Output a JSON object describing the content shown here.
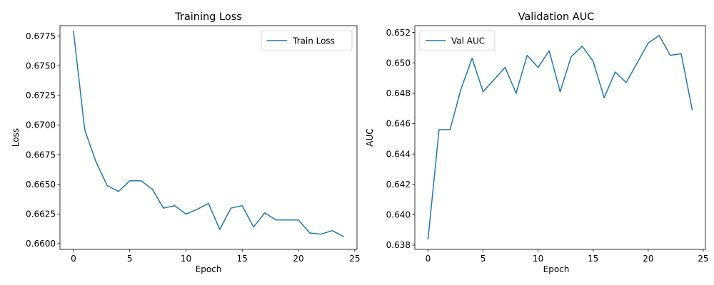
{
  "chart_data": [
    {
      "type": "line",
      "title": "Training Loss",
      "xlabel": "Epoch",
      "ylabel": "Loss",
      "xlim": [
        -1.2,
        25.2
      ],
      "ylim": [
        0.65952,
        0.67838
      ],
      "xticks": [
        0,
        5,
        10,
        15,
        20,
        25
      ],
      "xtick_labels": [
        "0",
        "5",
        "10",
        "15",
        "20",
        "25"
      ],
      "yticks": [
        0.66,
        0.6625,
        0.665,
        0.6675,
        0.67,
        0.6725,
        0.675,
        0.6775
      ],
      "ytick_labels": [
        "0.6600",
        "0.6625",
        "0.6650",
        "0.6675",
        "0.6700",
        "0.6725",
        "0.6750",
        "0.6775"
      ],
      "grid": false,
      "legend_position": "top-right",
      "color": "#1f77b4",
      "series": [
        {
          "name": "Train Loss",
          "x": [
            0,
            1,
            2,
            3,
            4,
            5,
            6,
            7,
            8,
            9,
            10,
            11,
            12,
            13,
            14,
            15,
            16,
            17,
            18,
            19,
            20,
            21,
            22,
            23,
            24
          ],
          "values": [
            0.6779,
            0.6696,
            0.6669,
            0.6649,
            0.6644,
            0.6653,
            0.6653,
            0.6646,
            0.663,
            0.6632,
            0.6625,
            0.6629,
            0.6634,
            0.6612,
            0.663,
            0.6632,
            0.6614,
            0.6626,
            0.662,
            0.662,
            0.662,
            0.6609,
            0.6608,
            0.6611,
            0.6606
          ]
        }
      ]
    },
    {
      "type": "line",
      "title": "Validation AUC",
      "xlabel": "Epoch",
      "ylabel": "AUC",
      "xlim": [
        -1.2,
        25.2
      ],
      "ylim": [
        0.63772,
        0.65245
      ],
      "xticks": [
        0,
        5,
        10,
        15,
        20,
        25
      ],
      "xtick_labels": [
        "0",
        "5",
        "10",
        "15",
        "20",
        "25"
      ],
      "yticks": [
        0.638,
        0.64,
        0.642,
        0.644,
        0.646,
        0.648,
        0.65,
        0.652
      ],
      "ytick_labels": [
        "0.638",
        "0.640",
        "0.642",
        "0.644",
        "0.646",
        "0.648",
        "0.650",
        "0.652"
      ],
      "grid": false,
      "legend_position": "top-left",
      "color": "#1f77b4",
      "series": [
        {
          "name": "Val AUC",
          "x": [
            0,
            1,
            2,
            3,
            4,
            5,
            6,
            7,
            8,
            9,
            10,
            11,
            12,
            13,
            14,
            15,
            16,
            17,
            18,
            19,
            20,
            21,
            22,
            23,
            24
          ],
          "values": [
            0.6384,
            0.6456,
            0.6456,
            0.6483,
            0.6503,
            0.6481,
            0.6489,
            0.6497,
            0.648,
            0.6505,
            0.6497,
            0.6508,
            0.6481,
            0.6504,
            0.6511,
            0.6501,
            0.6477,
            0.6494,
            0.6487,
            0.65,
            0.6513,
            0.6518,
            0.6505,
            0.6506,
            0.6469
          ]
        }
      ]
    }
  ]
}
